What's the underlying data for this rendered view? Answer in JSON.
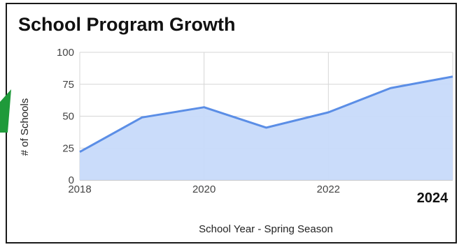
{
  "chart_data": {
    "type": "area",
    "title": "School Program Growth",
    "xlabel": "School Year - Spring Season",
    "ylabel": "# of Schools",
    "x": [
      2018,
      2019,
      2020,
      2021,
      2022,
      2023,
      2024
    ],
    "series": [
      {
        "values": [
          22,
          49,
          57,
          41,
          53,
          72,
          81
        ],
        "color": "#5b8ee6",
        "fill": "#c7dafa"
      }
    ],
    "xticks": [
      "2018",
      "2020",
      "2022"
    ],
    "emphasized_xtick": "2024",
    "yticks": [
      "0",
      "25",
      "50",
      "75",
      "100"
    ],
    "ylim": [
      0,
      100
    ],
    "xlim": [
      2018,
      2024
    ],
    "grid": true,
    "legend": "none"
  },
  "colors": {
    "grid": "#d6d6d6",
    "frame": "#1a1a1a",
    "arrow": "#1f9a3a"
  }
}
